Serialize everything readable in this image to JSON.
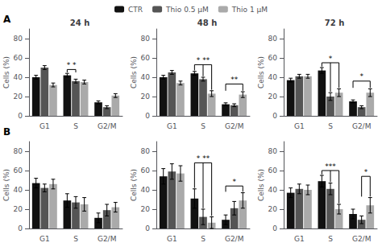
{
  "chart_data": [
    {
      "type": "bar",
      "title": "24 h",
      "categories": [
        "G1",
        "S",
        "G2/M"
      ],
      "ylabel": "Cells (%)",
      "ylim": [
        0,
        90
      ],
      "yticks": [
        0,
        20,
        40,
        60,
        80
      ],
      "grid": false,
      "legend": "top",
      "series": [
        {
          "name": "CTR",
          "color": "#111111",
          "values": [
            40,
            42,
            14
          ],
          "errors": [
            2,
            2,
            1.5
          ]
        },
        {
          "name": "Thio 0.5 μM",
          "color": "#555555",
          "values": [
            50,
            36,
            9
          ],
          "errors": [
            2,
            2,
            1.5
          ]
        },
        {
          "name": "Thio 1 μM",
          "color": "#aaaaaa",
          "values": [
            32,
            35,
            21
          ],
          "errors": [
            2,
            2,
            2
          ]
        }
      ],
      "annotations": [
        {
          "text": "A"
        },
        {
          "text": "* *",
          "category": "S",
          "series": [
            "CTR",
            "Thio 0.5 μM"
          ],
          "y": 48
        }
      ]
    },
    {
      "type": "bar",
      "title": "48 h",
      "categories": [
        "G1",
        "S",
        "G2/M"
      ],
      "ylabel": "Cells (%)",
      "ylim": [
        0,
        90
      ],
      "yticks": [
        0,
        20,
        40,
        60,
        80
      ],
      "grid": false,
      "series": [
        {
          "name": "CTR",
          "color": "#111111",
          "values": [
            40,
            44,
            12
          ],
          "errors": [
            2,
            2,
            1.5
          ]
        },
        {
          "name": "Thio 0.5 μM",
          "color": "#555555",
          "values": [
            45,
            38,
            11
          ],
          "errors": [
            2,
            2,
            1.5
          ]
        },
        {
          "name": "Thio 1 μM",
          "color": "#aaaaaa",
          "values": [
            34,
            23,
            22
          ],
          "errors": [
            2,
            3,
            3
          ]
        }
      ],
      "annotations": [
        {
          "text": "* **",
          "category": "S",
          "series": [
            "CTR",
            "Thio 0.5 μM",
            "Thio 1 μM"
          ],
          "y": 53
        },
        {
          "text": "**",
          "category": "G2/M",
          "series": [
            "CTR",
            "Thio 1 μM"
          ],
          "y": 33
        }
      ]
    },
    {
      "type": "bar",
      "title": "72 h",
      "categories": [
        "G1",
        "S",
        "G2/M"
      ],
      "ylabel": "Cells (%)",
      "ylim": [
        0,
        90
      ],
      "yticks": [
        0,
        20,
        40,
        60,
        80
      ],
      "grid": false,
      "series": [
        {
          "name": "CTR",
          "color": "#111111",
          "values": [
            37,
            47,
            15
          ],
          "errors": [
            2,
            3,
            1.5
          ]
        },
        {
          "name": "Thio 0.5 μM",
          "color": "#555555",
          "values": [
            41,
            20,
            9
          ],
          "errors": [
            2,
            4,
            1.5
          ]
        },
        {
          "name": "Thio 1 μM",
          "color": "#aaaaaa",
          "values": [
            41,
            24,
            24
          ],
          "errors": [
            2,
            4,
            4
          ]
        }
      ],
      "annotations": [
        {
          "text": "*",
          "category": "S",
          "series": [
            "CTR",
            "Thio 0.5 μM",
            "Thio 1 μM"
          ],
          "y": 55
        },
        {
          "text": "*",
          "category": "G2/M",
          "series": [
            "CTR",
            "Thio 1 μM"
          ],
          "y": 36
        }
      ]
    },
    {
      "type": "bar",
      "categories": [
        "G1",
        "S",
        "G2/M"
      ],
      "ylabel": "Cells (%)",
      "ylim": [
        0,
        90
      ],
      "yticks": [
        0,
        20,
        40,
        60,
        80
      ],
      "grid": false,
      "series": [
        {
          "name": "CTR",
          "color": "#111111",
          "values": [
            47,
            29,
            11
          ],
          "errors": [
            5,
            7,
            5
          ]
        },
        {
          "name": "Thio 0.5 μM",
          "color": "#555555",
          "values": [
            42,
            27,
            19
          ],
          "errors": [
            4,
            6,
            6
          ]
        },
        {
          "name": "Thio 1 μM",
          "color": "#aaaaaa",
          "values": [
            46,
            25,
            22
          ],
          "errors": [
            5,
            7,
            5
          ]
        }
      ],
      "annotations": [
        {
          "text": "B"
        }
      ]
    },
    {
      "type": "bar",
      "categories": [
        "G1",
        "S",
        "G2/M"
      ],
      "ylabel": "Cells (%)",
      "ylim": [
        0,
        90
      ],
      "yticks": [
        0,
        20,
        40,
        60,
        80
      ],
      "grid": false,
      "series": [
        {
          "name": "CTR",
          "color": "#111111",
          "values": [
            54,
            31,
            9
          ],
          "errors": [
            8,
            10,
            5
          ]
        },
        {
          "name": "Thio 0.5 μM",
          "color": "#555555",
          "values": [
            59,
            12,
            21
          ],
          "errors": [
            8,
            8,
            7
          ]
        },
        {
          "name": "Thio 1 μM",
          "color": "#aaaaaa",
          "values": [
            57,
            6,
            29
          ],
          "errors": [
            8,
            6,
            8
          ]
        }
      ],
      "annotations": [
        {
          "text": "* **",
          "category": "S",
          "series": [
            "CTR",
            "Thio 0.5 μM",
            "Thio 1 μM"
          ],
          "y": 68
        },
        {
          "text": "*",
          "category": "G2/M",
          "series": [
            "CTR",
            "Thio 1 μM"
          ],
          "y": 44
        }
      ]
    },
    {
      "type": "bar",
      "categories": [
        "G1",
        "S",
        "G2/M"
      ],
      "ylabel": "Cells (%)",
      "ylim": [
        0,
        90
      ],
      "yticks": [
        0,
        20,
        40,
        60,
        80
      ],
      "grid": false,
      "series": [
        {
          "name": "CTR",
          "color": "#111111",
          "values": [
            37,
            49,
            15
          ],
          "errors": [
            5,
            6,
            5
          ]
        },
        {
          "name": "Thio 0.5 μM",
          "color": "#555555",
          "values": [
            41,
            41,
            9
          ],
          "errors": [
            5,
            6,
            4
          ]
        },
        {
          "name": "Thio 1 μM",
          "color": "#aaaaaa",
          "values": [
            40,
            20,
            24
          ],
          "errors": [
            5,
            5,
            8
          ]
        }
      ],
      "annotations": [
        {
          "text": "***",
          "category": "S",
          "series": [
            "CTR",
            "Thio 0.5 μM",
            "Thio 1 μM"
          ],
          "y": 60
        },
        {
          "text": "*",
          "category": "G2/M",
          "series": [
            "Thio 0.5 μM",
            "Thio 1 μM"
          ],
          "y": 54
        }
      ]
    }
  ]
}
